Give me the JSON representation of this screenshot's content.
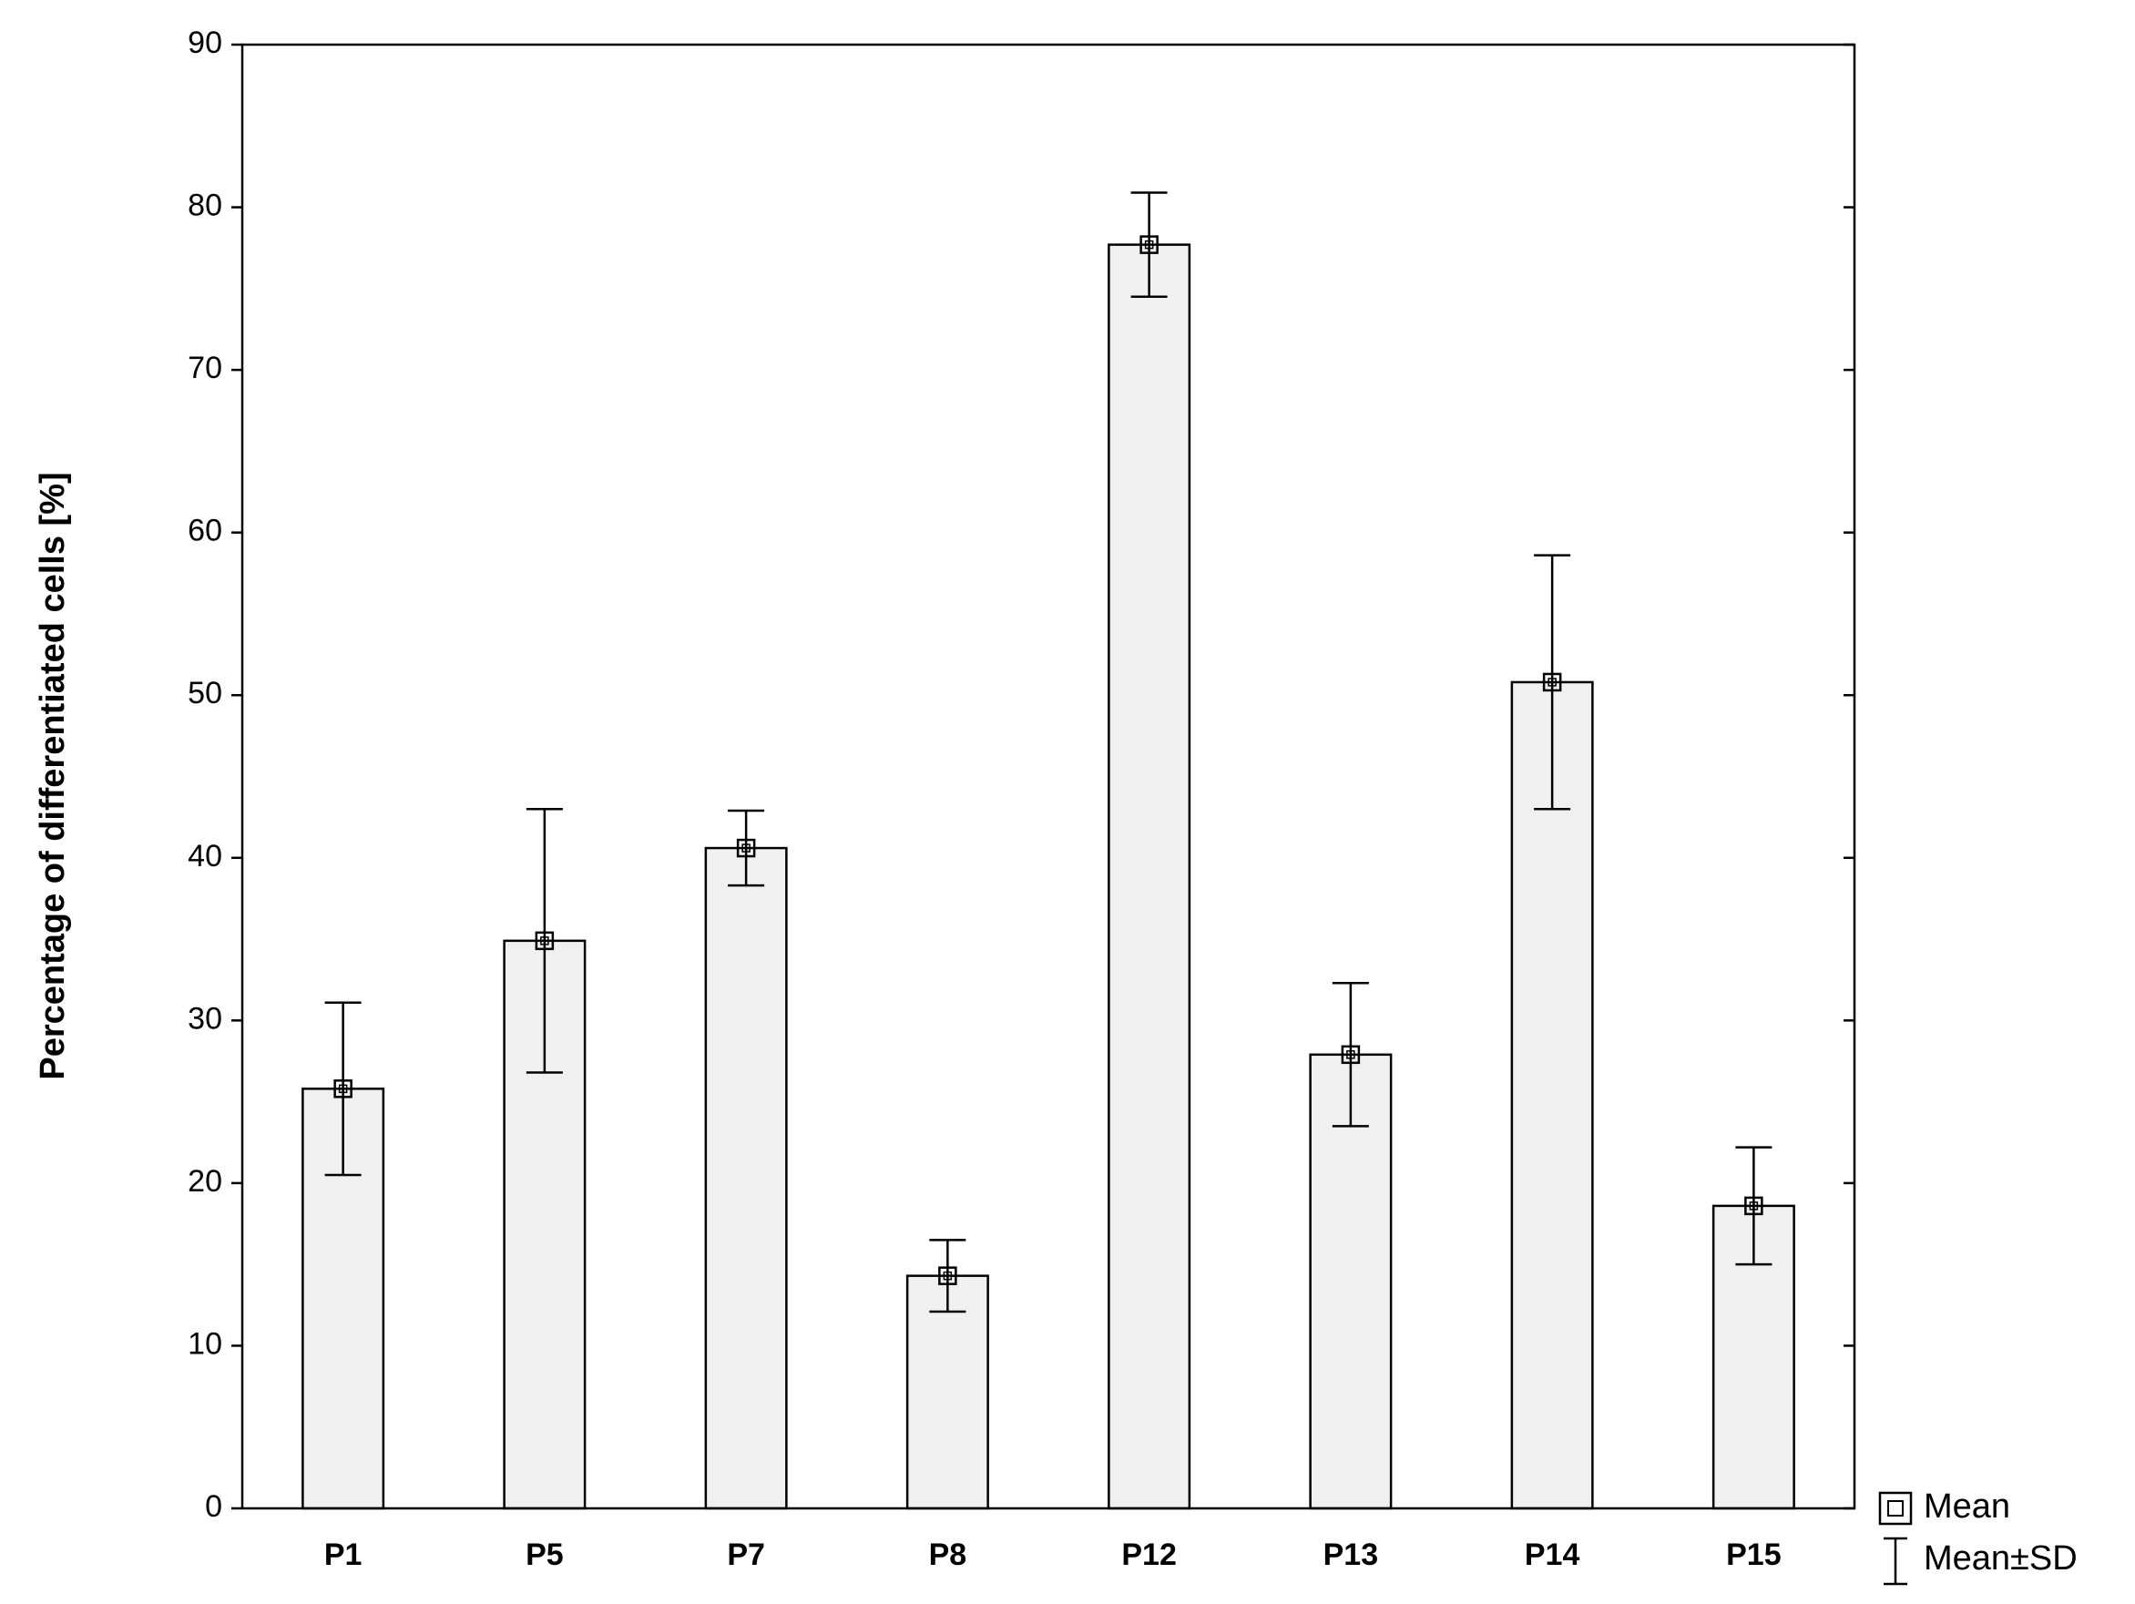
{
  "chart_data": {
    "type": "bar",
    "y_label": "Percentage of differentiated cells [%]",
    "categories": [
      "P1",
      "P5",
      "P7",
      "P8",
      "P12",
      "P13",
      "P14",
      "P15"
    ],
    "series": [
      {
        "name": "Mean",
        "color": "#f0f0f0",
        "values": [
          25.8,
          34.9,
          40.6,
          14.3,
          77.7,
          27.9,
          50.8,
          18.6
        ],
        "errors": [
          5.3,
          8.1,
          2.3,
          2.2,
          3.2,
          4.4,
          7.8,
          3.6
        ],
        "error_name": "Mean±SD"
      }
    ],
    "ylim": [
      0,
      90
    ],
    "yticks": [
      0,
      10,
      20,
      30,
      40,
      50,
      60,
      70,
      80,
      90
    ]
  }
}
